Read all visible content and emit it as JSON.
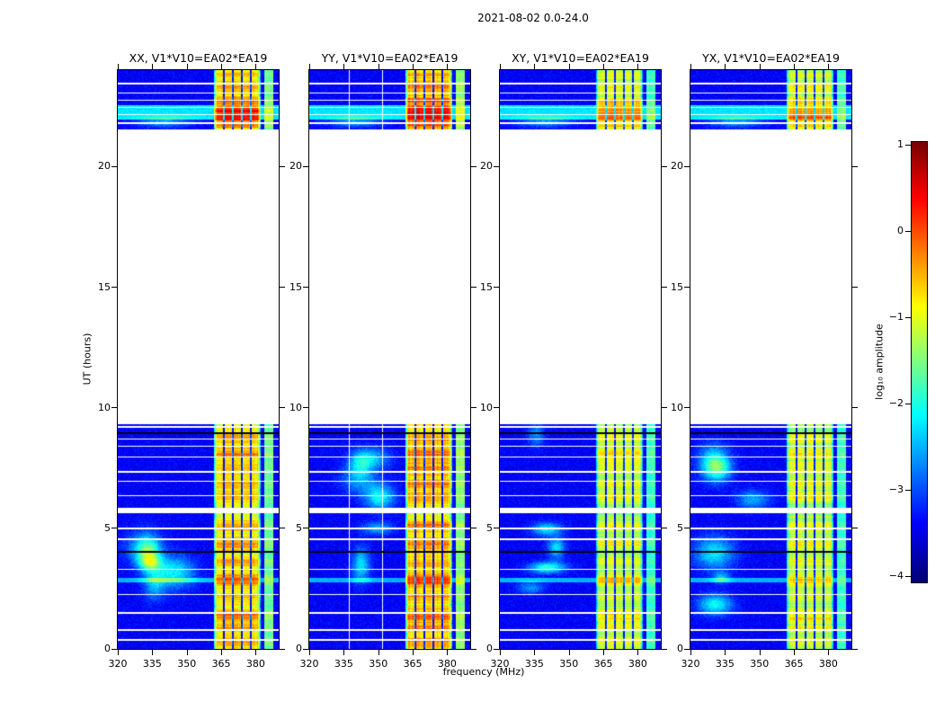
{
  "figure": {
    "suptitle": "2021-08-02 0.0-24.0",
    "xlabel": "frequency (MHz)",
    "ylabel": "UT (hours)",
    "colorbar_label": "log₁₀ amplitude"
  },
  "chart_data": {
    "type": "heatmap",
    "subtype": "dynamic_spectrum_waterfall",
    "title": "2021-08-02 0.0-24.0",
    "xlabel": "frequency (MHz)",
    "ylabel": "UT (hours)",
    "xlim": [
      320,
      390
    ],
    "ylim": [
      0,
      24
    ],
    "xticks": [
      320,
      335,
      350,
      365,
      380
    ],
    "yticks": [
      0,
      5,
      10,
      15,
      20
    ],
    "grid": false,
    "panels": [
      {
        "title": "XX, V1*V10=EA02*EA19",
        "pol": "XX",
        "baseline": "V1*V10=EA02*EA19",
        "seed": 1,
        "rfi_gain": 1.0
      },
      {
        "title": "YY, V1*V10=EA02*EA19",
        "pol": "YY",
        "baseline": "V1*V10=EA02*EA19",
        "seed": 2,
        "rfi_gain": 1.05,
        "white_cols": [
          337.5,
          352.0
        ]
      },
      {
        "title": "XY, V1*V10=EA02*EA19",
        "pol": "XY",
        "baseline": "V1*V10=EA02*EA19",
        "seed": 3,
        "rfi_gain": 0.85
      },
      {
        "title": "YX, V1*V10=EA02*EA19",
        "pol": "YX",
        "baseline": "V1*V10=EA02*EA19",
        "seed": 4,
        "rfi_gain": 0.85
      }
    ],
    "time_blocks": [
      [
        0.0,
        5.62
      ],
      [
        5.85,
        9.32
      ],
      [
        21.55,
        24.0
      ]
    ],
    "noise_floor": -3.4,
    "rfi_bands": [
      {
        "fmin": 362.0,
        "fmax": 382.0,
        "level": -1.0,
        "subband_separators": [
          366,
          370,
          374,
          378
        ]
      },
      {
        "fmin": 383.6,
        "fmax": 387.6,
        "level": -1.7
      }
    ],
    "rfi_row_peaks": [
      [
        0.3,
        0.2,
        0.55
      ],
      [
        0.85,
        0.12,
        0.6
      ],
      [
        1.35,
        0.3,
        0.75
      ],
      [
        2.15,
        0.15,
        0.5
      ],
      [
        2.85,
        0.25,
        0.95
      ],
      [
        3.6,
        0.2,
        0.5
      ],
      [
        4.35,
        0.25,
        0.6
      ],
      [
        5.1,
        0.2,
        0.6
      ],
      [
        6.3,
        0.2,
        0.55
      ],
      [
        6.85,
        0.2,
        0.5
      ],
      [
        7.5,
        0.3,
        0.5
      ],
      [
        8.1,
        0.25,
        0.6
      ],
      [
        8.75,
        0.2,
        0.55
      ],
      [
        21.7,
        0.15,
        0.85
      ],
      [
        22.0,
        0.12,
        1.0
      ],
      [
        22.3,
        0.3,
        1.25
      ],
      [
        22.75,
        0.15,
        0.7
      ],
      [
        23.3,
        0.25,
        0.55
      ],
      [
        23.8,
        0.15,
        0.5
      ]
    ],
    "flagged_rows_white": [
      0.37,
      0.78,
      1.5,
      2.25,
      3.3,
      4.55,
      5.0,
      6.35,
      6.95,
      7.35,
      7.95,
      8.4,
      8.7,
      9.2,
      21.8,
      22.15,
      22.45,
      22.75,
      23.05,
      23.45
    ],
    "flagged_rows_black": [
      4.03,
      8.95
    ],
    "cyan_rows": [
      [
        21.95,
        22.55
      ]
    ],
    "thin_cyan_rows": [
      2.85
    ],
    "colorbar": {
      "label": "log₁₀ amplitude",
      "vmin": -4,
      "vmax": 1,
      "ticks": [
        1,
        0,
        -1,
        -2,
        -3,
        -4
      ],
      "colormap": "jet",
      "orientation": "vertical"
    }
  }
}
